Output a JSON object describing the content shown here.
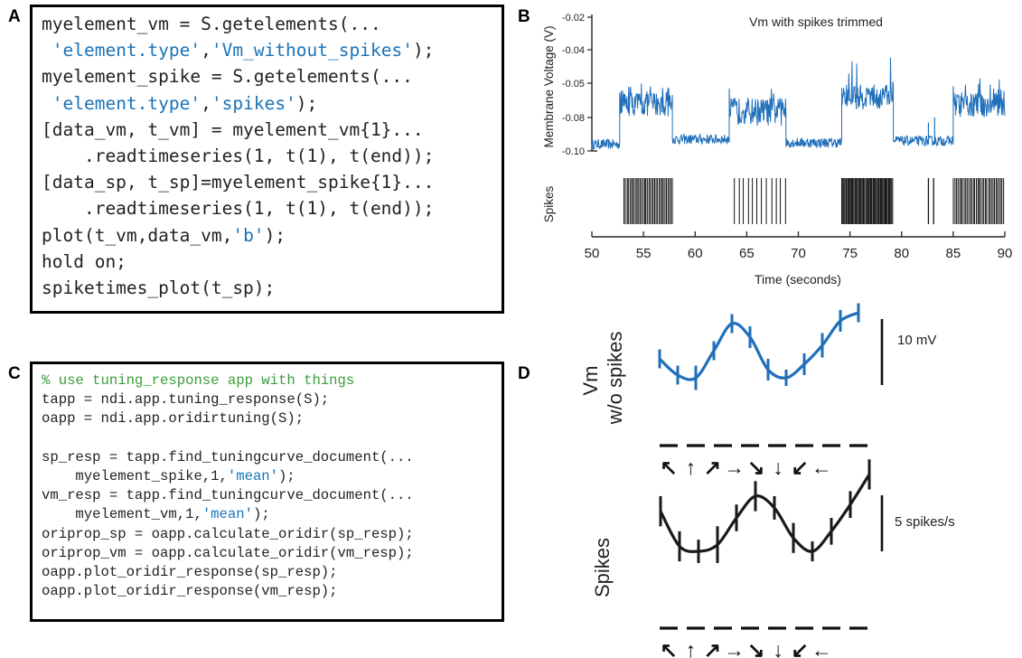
{
  "panel_labels": {
    "a": "A",
    "b": "B",
    "c": "C",
    "d": "D"
  },
  "code_a": [
    [
      {
        "t": "myelement_vm = S.getelements(..."
      }
    ],
    [
      {
        "t": " "
      },
      {
        "t": "'element.type'",
        "s": 1
      },
      {
        "t": ","
      },
      {
        "t": "'Vm_without_spikes'",
        "s": 1
      },
      {
        "t": ");"
      }
    ],
    [
      {
        "t": "myelement_spike = S.getelements(..."
      }
    ],
    [
      {
        "t": " "
      },
      {
        "t": "'element.type'",
        "s": 1
      },
      {
        "t": ","
      },
      {
        "t": "'spikes'",
        "s": 1
      },
      {
        "t": ");"
      }
    ],
    [
      {
        "t": "[data_vm, t_vm] = myelement_vm{1}..."
      }
    ],
    [
      {
        "t": "    .readtimeseries(1, t(1), t(end));"
      }
    ],
    [
      {
        "t": "[data_sp, t_sp]=myelement_spike{1}..."
      }
    ],
    [
      {
        "t": "    .readtimeseries(1, t(1), t(end));"
      }
    ],
    [
      {
        "t": "plot(t_vm,data_vm,"
      },
      {
        "t": "'b'",
        "s": 1
      },
      {
        "t": ");"
      }
    ],
    [
      {
        "t": "hold on;"
      }
    ],
    [
      {
        "t": "spiketimes_plot(t_sp);"
      }
    ]
  ],
  "code_c": [
    [
      {
        "t": "% use tuning_response app with things",
        "c": 1
      }
    ],
    [
      {
        "t": "tapp = ndi.app.tuning_response(S);"
      }
    ],
    [
      {
        "t": "oapp = ndi.app.oridirtuning(S);"
      }
    ],
    [],
    [
      {
        "t": "sp_resp = tapp.find_tuningcurve_document(..."
      }
    ],
    [
      {
        "t": "    myelement_spike,1,"
      },
      {
        "t": "'mean'",
        "s": 1
      },
      {
        "t": ");"
      }
    ],
    [
      {
        "t": "vm_resp = tapp.find_tuningcurve_document(..."
      }
    ],
    [
      {
        "t": "    myelement_vm,1,"
      },
      {
        "t": "'mean'",
        "s": 1
      },
      {
        "t": ");"
      }
    ],
    [
      {
        "t": "oriprop_sp = oapp.calculate_oridir(sp_resp);"
      }
    ],
    [
      {
        "t": "oriprop_vm = oapp.calculate_oridir(vm_resp);"
      }
    ],
    [
      {
        "t": "oapp.plot_oridir_response(sp_resp);"
      }
    ],
    [
      {
        "t": "oapp.plot_oridir_response(vm_resp);"
      }
    ]
  ],
  "chart_data": [
    {
      "type": "line",
      "title": "Vm with spikes trimmed",
      "ylabel": "Membrane Voltage (V)",
      "xlabel": "",
      "ylim": [
        -0.1,
        -0.02
      ],
      "yticks": [
        "-0.02",
        "-0.04",
        "-0.05",
        "-0.08",
        "-0.10"
      ],
      "xlim": [
        50,
        90
      ],
      "series": [
        {
          "color": "#1f6fba",
          "segments": [
            {
              "x": [
                50,
                52.7
              ],
              "level": -0.096
            },
            {
              "x": [
                52.7,
                57.8
              ],
              "level": -0.068
            },
            {
              "x": [
                57.8,
                63.3
              ],
              "level": -0.093
            },
            {
              "x": [
                63.3,
                68.8
              ],
              "level": -0.074
            },
            {
              "x": [
                68.8,
                74.2
              ],
              "level": -0.095
            },
            {
              "x": [
                74.2,
                79.2
              ],
              "level": -0.062
            },
            {
              "x": [
                79.2,
                85.0
              ],
              "level": -0.094
            },
            {
              "x": [
                85.0,
                90.0
              ],
              "level": -0.069
            }
          ],
          "transients": [
            {
              "x": 82.6,
              "level": -0.083
            },
            {
              "x": 83.2,
              "level": -0.08
            }
          ]
        }
      ]
    },
    {
      "type": "scatter",
      "ylabel": "Spikes",
      "xlabel": "Time (seconds)",
      "xlim": [
        50,
        90
      ],
      "xticks": [
        50,
        55,
        60,
        65,
        70,
        75,
        80,
        85,
        90
      ],
      "bursts": [
        {
          "start": 53.1,
          "end": 57.9,
          "count": 34
        },
        {
          "start": 63.7,
          "end": 69.1,
          "count": 12
        },
        {
          "start": 74.2,
          "end": 79.2,
          "count": 52
        },
        {
          "start": 85.0,
          "end": 90.0,
          "count": 34
        }
      ],
      "isolated": [
        82.6,
        83.1
      ]
    },
    {
      "type": "line",
      "ylabel": "Vm w/o spikes",
      "scale_bar": "10 mV",
      "color": "#1f6fba",
      "directions": [
        "↖",
        "↑",
        "↗",
        "→",
        "↘",
        "↓",
        "↙",
        "←"
      ],
      "points": [
        {
          "y": -0.3,
          "err": 0.35
        },
        {
          "y": -0.9,
          "err": 0.35
        },
        {
          "y": -1.0,
          "err": 0.45
        },
        {
          "y": 0.0,
          "err": 0.35
        },
        {
          "y": 1.0,
          "err": 0.35
        },
        {
          "y": 0.5,
          "err": 0.4
        },
        {
          "y": -0.7,
          "err": 0.4
        },
        {
          "y": -1.0,
          "err": 0.3
        },
        {
          "y": -0.5,
          "err": 0.4
        },
        {
          "y": 0.2,
          "err": 0.45
        },
        {
          "y": 1.1,
          "err": 0.4
        },
        {
          "y": 1.4,
          "err": 0.35
        }
      ]
    },
    {
      "type": "line",
      "ylabel": "Spikes",
      "scale_bar": "5 spikes/s",
      "color": "#1a1a1a",
      "directions": [
        "↖",
        "↑",
        "↗",
        "→",
        "↘",
        "↓",
        "↙",
        "←"
      ],
      "points": [
        {
          "y": 0.2,
          "err": 0.45
        },
        {
          "y": -0.85,
          "err": 0.45
        },
        {
          "y": -1.0,
          "err": 0.35
        },
        {
          "y": -0.8,
          "err": 0.55
        },
        {
          "y": 0.0,
          "err": 0.4
        },
        {
          "y": 0.65,
          "err": 0.45
        },
        {
          "y": 0.3,
          "err": 0.35
        },
        {
          "y": -0.6,
          "err": 0.45
        },
        {
          "y": -1.0,
          "err": 0.3
        },
        {
          "y": -0.4,
          "err": 0.4
        },
        {
          "y": 0.4,
          "err": 0.4
        },
        {
          "y": 1.3,
          "err": 0.45
        }
      ]
    }
  ]
}
